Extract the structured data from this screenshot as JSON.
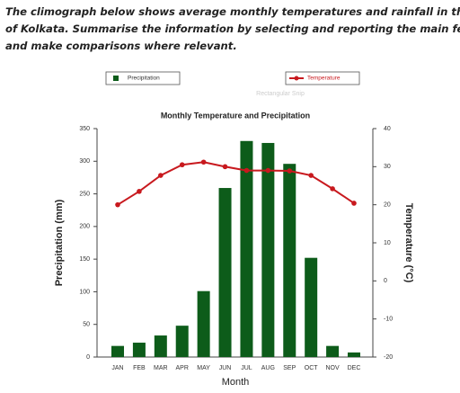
{
  "prompt": {
    "lines": [
      "The climograph below shows average monthly temperatures and rainfall in the city",
      "of Kolkata. Summarise the information by selecting and reporting the main features",
      "and make comparisons where relevant."
    ]
  },
  "snip_label": "Rectangular Snip",
  "chart_data": {
    "type": "bar",
    "title": "Monthly Temperature and Precipitation",
    "x_label": "Month",
    "y_label": "Precipitation (mm)",
    "y2_label": "Temperature (°C)",
    "categories": [
      "JAN",
      "FEB",
      "MAR",
      "APR",
      "MAY",
      "JUN",
      "JUL",
      "AUG",
      "SEP",
      "OCT",
      "NOV",
      "DEC"
    ],
    "series": [
      {
        "name": "Precipitation",
        "type": "bar",
        "color": "#0d5c1a",
        "values": [
          17,
          22,
          33,
          48,
          101,
          259,
          331,
          328,
          296,
          152,
          17,
          7
        ]
      },
      {
        "name": "Temperature",
        "type": "line",
        "axis": "y2",
        "color": "#c8191e",
        "values": [
          20,
          23.5,
          27.7,
          30.5,
          31.2,
          30,
          29,
          29,
          28.9,
          27.7,
          24.2,
          20.4
        ]
      }
    ],
    "ylim": [
      0,
      350
    ],
    "yticks": [
      0,
      50,
      100,
      150,
      200,
      250,
      300,
      350
    ],
    "y2lim": [
      -20,
      40
    ],
    "y2ticks": [
      -20,
      -10,
      0,
      10,
      20,
      30,
      40
    ]
  }
}
